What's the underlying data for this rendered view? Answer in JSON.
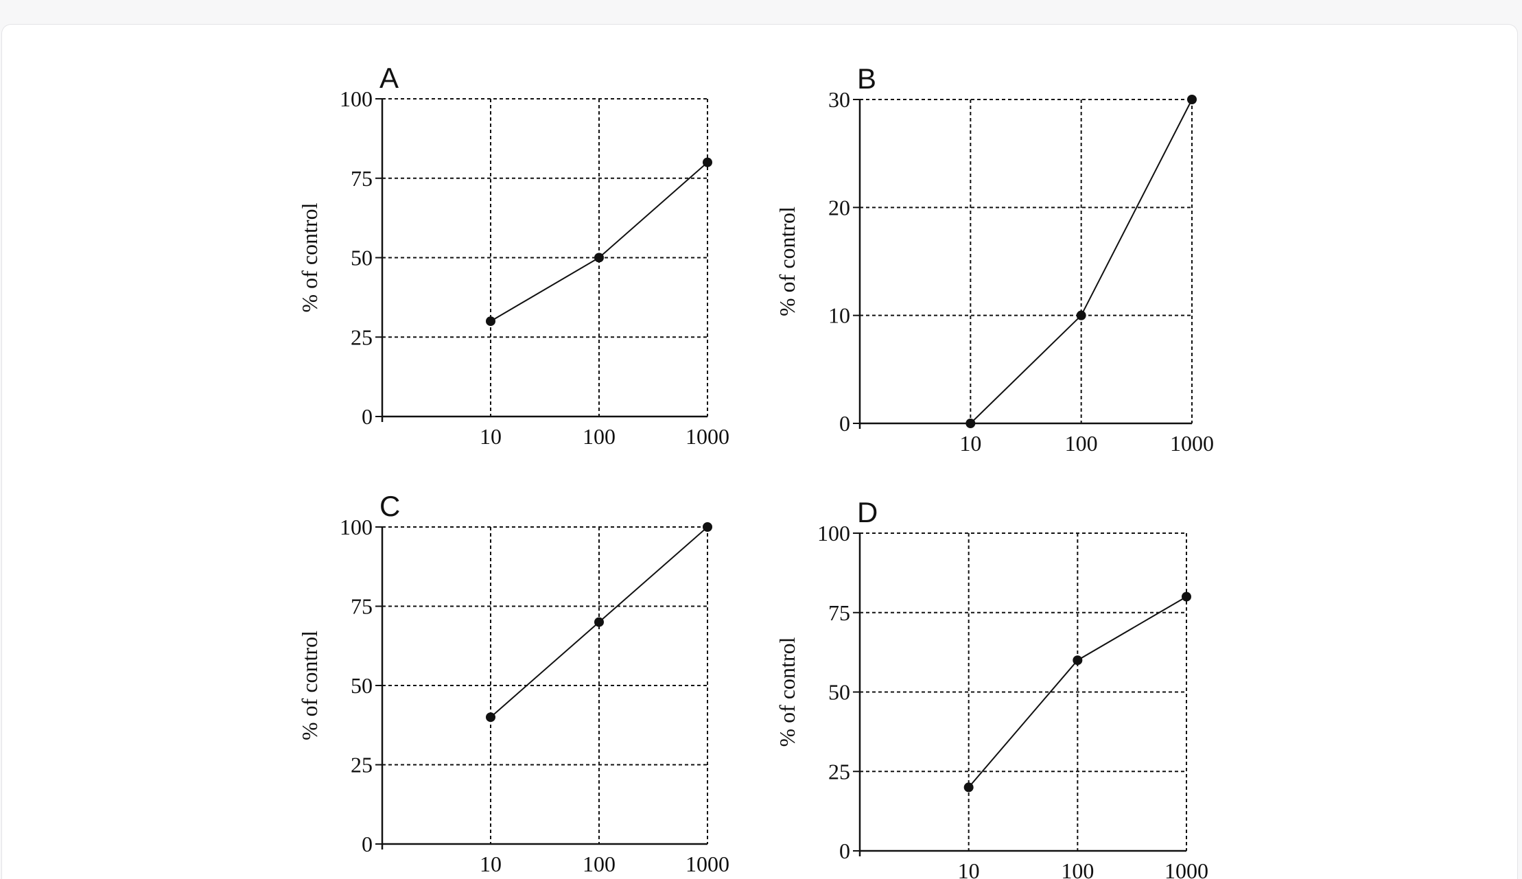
{
  "chart_data": [
    {
      "panel": "A",
      "type": "line",
      "x": [
        10,
        100,
        1000
      ],
      "values": [
        30,
        50,
        80
      ],
      "xscale": "log",
      "xticks": [
        "10",
        "100",
        "1000"
      ],
      "yticks": [
        "0",
        "25",
        "50",
        "75",
        "100"
      ],
      "ylim": [
        0,
        100
      ],
      "ylabel": "% of control",
      "grid": true
    },
    {
      "panel": "B",
      "type": "line",
      "x": [
        10,
        100,
        1000
      ],
      "values": [
        0,
        10,
        30
      ],
      "xscale": "log",
      "xticks": [
        "10",
        "100",
        "1000"
      ],
      "yticks": [
        "0",
        "10",
        "20",
        "30"
      ],
      "ylim": [
        0,
        30
      ],
      "ylabel": "% of control",
      "grid": true
    },
    {
      "panel": "C",
      "type": "line",
      "x": [
        10,
        100,
        1000
      ],
      "values": [
        40,
        70,
        100
      ],
      "xscale": "log",
      "xticks": [
        "10",
        "100",
        "1000"
      ],
      "yticks": [
        "0",
        "25",
        "50",
        "75",
        "100"
      ],
      "ylim": [
        0,
        100
      ],
      "ylabel": "% of control",
      "grid": true
    },
    {
      "panel": "D",
      "type": "line",
      "x": [
        10,
        100,
        1000
      ],
      "values": [
        20,
        60,
        80
      ],
      "xscale": "log",
      "xticks": [
        "10",
        "100",
        "1000"
      ],
      "yticks": [
        "0",
        "25",
        "50",
        "75",
        "100"
      ],
      "ylim": [
        0,
        100
      ],
      "ylabel": "% of control",
      "grid": true
    }
  ]
}
